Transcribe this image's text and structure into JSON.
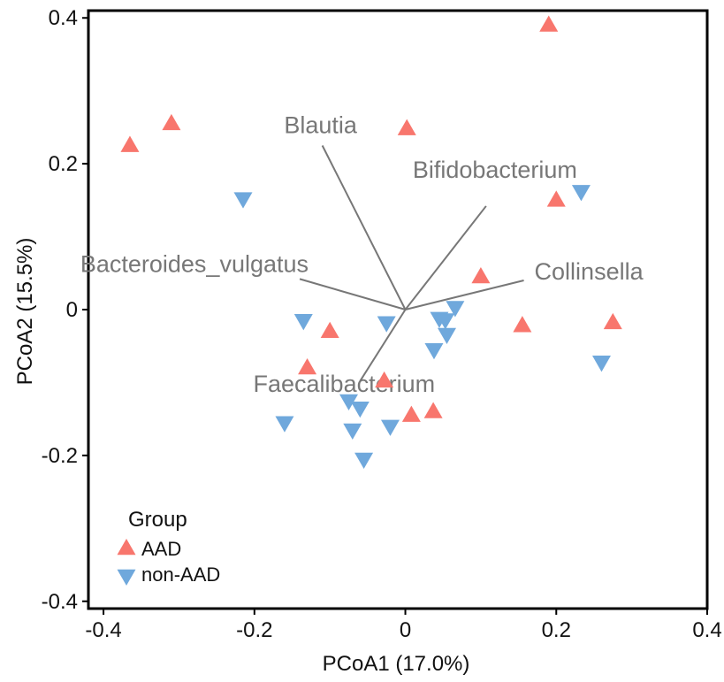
{
  "chart_data": {
    "type": "scatter",
    "title": "",
    "xlabel": "PCoA1 (17.0%)",
    "ylabel": "PCoA2 (15.5%)",
    "xlim": [
      -0.42,
      0.4
    ],
    "ylim": [
      -0.41,
      0.41
    ],
    "x_ticks": [
      -0.4,
      -0.2,
      0,
      0.2,
      0.4
    ],
    "x_tick_labels": [
      "-0.4",
      "-0.2",
      "0",
      "0.2",
      "0.4"
    ],
    "y_ticks": [
      -0.4,
      -0.2,
      0,
      0.2,
      0.4
    ],
    "y_tick_labels": [
      "-0.4",
      "-0.2",
      "0",
      "0.2",
      "0.4"
    ],
    "grid": false,
    "legend": {
      "title": "Group",
      "position": "bottom-left",
      "entries": [
        {
          "label": "AAD",
          "marker": "triangle-up",
          "color": "#F8766D"
        },
        {
          "label": "non-AAD",
          "marker": "triangle-down",
          "color": "#6FA8DC"
        }
      ]
    },
    "series": [
      {
        "name": "AAD",
        "marker": "triangle-up",
        "color": "#F8766D",
        "points": [
          {
            "x": 0.19,
            "y": 0.39
          },
          {
            "x": -0.31,
            "y": 0.255
          },
          {
            "x": -0.365,
            "y": 0.225
          },
          {
            "x": 0.002,
            "y": 0.248
          },
          {
            "x": 0.2,
            "y": 0.15
          },
          {
            "x": 0.1,
            "y": 0.045
          },
          {
            "x": 0.155,
            "y": -0.022
          },
          {
            "x": 0.275,
            "y": -0.018
          },
          {
            "x": -0.1,
            "y": -0.03
          },
          {
            "x": -0.13,
            "y": -0.08
          },
          {
            "x": -0.028,
            "y": -0.098
          },
          {
            "x": 0.008,
            "y": -0.145
          },
          {
            "x": 0.037,
            "y": -0.14
          }
        ]
      },
      {
        "name": "non-AAD",
        "marker": "triangle-down",
        "color": "#6FA8DC",
        "points": [
          {
            "x": -0.215,
            "y": 0.152
          },
          {
            "x": 0.233,
            "y": 0.162
          },
          {
            "x": -0.135,
            "y": -0.015
          },
          {
            "x": -0.025,
            "y": -0.018
          },
          {
            "x": 0.045,
            "y": -0.012
          },
          {
            "x": 0.053,
            "y": -0.014
          },
          {
            "x": 0.066,
            "y": 0.003
          },
          {
            "x": 0.055,
            "y": -0.034
          },
          {
            "x": 0.038,
            "y": -0.055
          },
          {
            "x": 0.26,
            "y": -0.072
          },
          {
            "x": -0.075,
            "y": -0.125
          },
          {
            "x": -0.06,
            "y": -0.135
          },
          {
            "x": -0.16,
            "y": -0.155
          },
          {
            "x": -0.07,
            "y": -0.165
          },
          {
            "x": -0.02,
            "y": -0.16
          },
          {
            "x": -0.055,
            "y": -0.205
          }
        ]
      }
    ],
    "biplot_vectors": [
      {
        "label": "Blautia",
        "x": -0.11,
        "y": 0.225
      },
      {
        "label": "Bifidobacterium",
        "x": 0.107,
        "y": 0.142
      },
      {
        "label": "Bacteroides_vulgatus",
        "x": -0.14,
        "y": 0.042
      },
      {
        "label": "Collinsella",
        "x": 0.157,
        "y": 0.04
      },
      {
        "label": "Faecalibacterium",
        "x": -0.06,
        "y": -0.098
      }
    ]
  }
}
